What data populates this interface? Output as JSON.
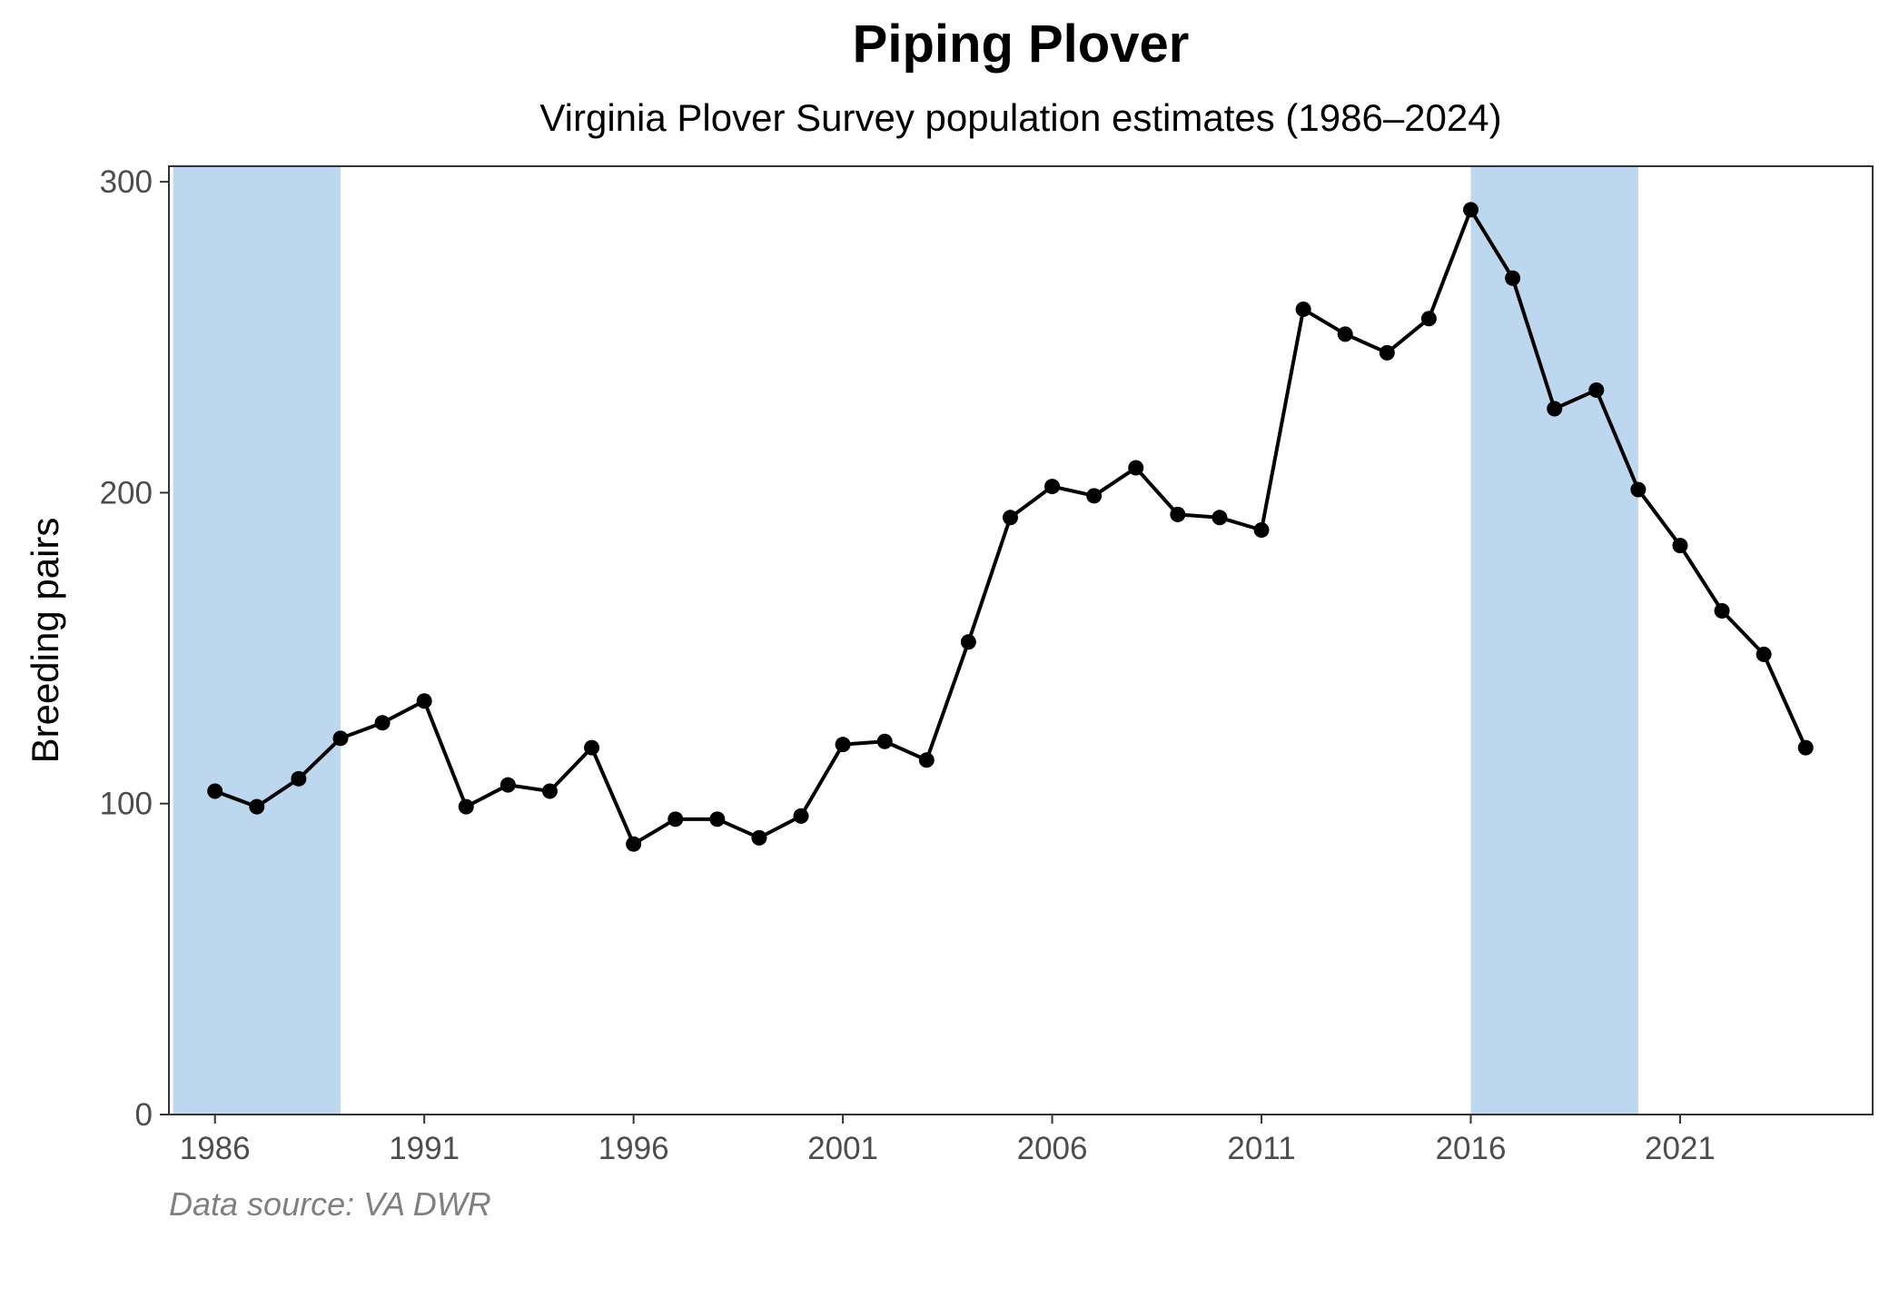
{
  "chart_data": {
    "type": "line",
    "title": "Piping Plover",
    "subtitle": "Virginia Plover Survey population estimates (1986–2024)",
    "xlabel": "",
    "ylabel": "Breeding pairs",
    "caption": "Data source: VA DWR",
    "xlim": [
      1984.9,
      2025.6
    ],
    "ylim": [
      0,
      305
    ],
    "x_ticks": [
      1986,
      1991,
      1996,
      2001,
      2006,
      2011,
      2016,
      2021
    ],
    "y_ticks": [
      0,
      100,
      200,
      300
    ],
    "grid": false,
    "legend": "none",
    "highlight_color": "#bdd7ee",
    "line_color": "#000000",
    "highlight_ranges": [
      [
        1985,
        1989
      ],
      [
        2016,
        2020
      ]
    ],
    "series": [
      {
        "x": [
          1986,
          1987,
          1988,
          1989,
          1990,
          1991,
          1992,
          1993,
          1994,
          1995,
          1996,
          1997,
          1998,
          1999,
          2000,
          2001,
          2002,
          2003,
          2004,
          2005,
          2006,
          2007,
          2008,
          2009,
          2010,
          2011,
          2012,
          2013,
          2014,
          2015,
          2016,
          2017,
          2018,
          2019,
          2020,
          2021,
          2022,
          2023,
          2024
        ],
        "values": [
          104,
          99,
          108,
          121,
          126,
          133,
          99,
          106,
          104,
          118,
          87,
          95,
          95,
          89,
          96,
          119,
          120,
          114,
          152,
          192,
          202,
          199,
          208,
          193,
          192,
          188,
          259,
          251,
          245,
          256,
          291,
          269,
          227,
          233,
          201,
          183,
          162,
          148,
          118
        ]
      }
    ]
  }
}
